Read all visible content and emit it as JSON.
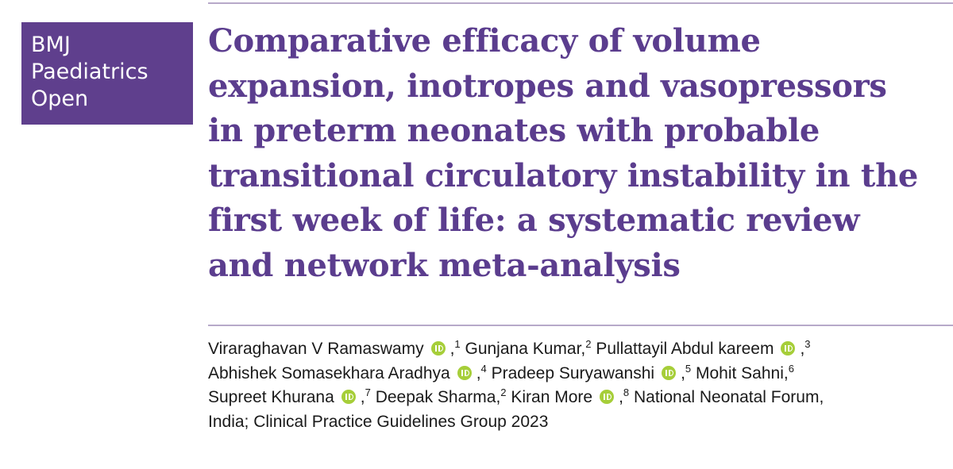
{
  "logo": {
    "lines": [
      "BMJ",
      "Paediatrics",
      "Open"
    ]
  },
  "title": {
    "lines": [
      "Comparative efficacy of volume",
      "expansion, inotropes and vasopressors",
      "in preterm neonates with probable",
      "transitional circulatory instability in the",
      "first week of life: a systematic review",
      "and network meta-analysis"
    ]
  },
  "authors": {
    "lines": [
      [
        {
          "text": "Viraraghavan V Ramaswamy"
        },
        {
          "orcid": true
        },
        {
          "text": ","
        },
        {
          "sup": "1"
        },
        {
          "text": " Gunjana Kumar,"
        },
        {
          "sup": "2"
        },
        {
          "text": " Pullattayil Abdul kareem"
        },
        {
          "orcid": true
        },
        {
          "text": ","
        },
        {
          "sup": "3"
        }
      ],
      [
        {
          "text": "Abhishek Somasekhara Aradhya"
        },
        {
          "orcid": true
        },
        {
          "text": ","
        },
        {
          "sup": "4"
        },
        {
          "text": " Pradeep Suryawanshi"
        },
        {
          "orcid": true
        },
        {
          "text": ","
        },
        {
          "sup": "5"
        },
        {
          "text": " Mohit Sahni,"
        },
        {
          "sup": "6"
        }
      ],
      [
        {
          "text": "Supreet Khurana"
        },
        {
          "orcid": true
        },
        {
          "text": ","
        },
        {
          "sup": "7"
        },
        {
          "text": " Deepak Sharma,"
        },
        {
          "sup": "2"
        },
        {
          "text": " Kiran More"
        },
        {
          "orcid": true
        },
        {
          "text": ","
        },
        {
          "sup": "8"
        },
        {
          "text": " National Neonatal Forum,"
        }
      ],
      [
        {
          "text": "India; Clinical Practice Guidelines Group 2023"
        }
      ]
    ]
  }
}
